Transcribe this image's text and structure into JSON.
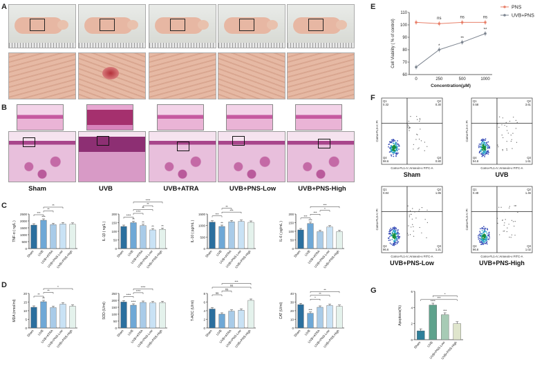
{
  "panel_letters": [
    "A",
    "B",
    "C",
    "D",
    "E",
    "F",
    "G"
  ],
  "groups_main": [
    "Sham",
    "UVB",
    "UVB+ATRA",
    "UVB+PNS-Low",
    "UVB+PNS-High"
  ],
  "flow_groups": [
    "Sham",
    "UVB",
    "UVB+PNS-Low",
    "UVB+PNS-High"
  ],
  "colors": {
    "sham": "#2b6f9e",
    "uvb": "#6fa8d6",
    "atra": "#a9cbe8",
    "low": "#c9e2f5",
    "high": "#e4f2ec",
    "pns": "#e8806a",
    "uvbpns": "#7d8590"
  },
  "chart_data": [
    {
      "id": "C1",
      "type": "bar",
      "ylabel": "TNF-α ( ng/L )",
      "categories": [
        "Sham",
        "UVB",
        "UVB+ATRA",
        "UVB+PNS-Low",
        "UVB+PNS-High"
      ],
      "values": [
        1700,
        2050,
        1730,
        1780,
        1760
      ],
      "ylim": [
        0,
        2500
      ],
      "ticks": [
        "0",
        "500",
        "1000",
        "1500",
        "2000",
        "2500"
      ],
      "stars": [
        "",
        "***",
        "",
        "",
        ""
      ],
      "brackets": [
        "***",
        "**",
        "**"
      ]
    },
    {
      "id": "C2",
      "type": "bar",
      "ylabel": "IL-1β ( ng/L )",
      "categories": [
        "Sham",
        "UVB",
        "UVB+ATRA",
        "UVB+PNS-Low",
        "UVB+PNS-High"
      ],
      "values": [
        128,
        150,
        133,
        108,
        111
      ],
      "ylim": [
        0,
        200
      ],
      "ticks": [
        "0",
        "50",
        "100",
        "150",
        "200"
      ],
      "stars": [
        "",
        "**",
        "**",
        "**",
        "**"
      ],
      "brackets": [
        "****",
        "****",
        "**",
        "**",
        "****"
      ]
    },
    {
      "id": "C3",
      "type": "bar",
      "ylabel": "IL-10 ( pg/mL )",
      "categories": [
        "Sham",
        "UVB",
        "UVB+ATRA",
        "UVB+PNS-Low",
        "UVB+PNS-High"
      ],
      "values": [
        1150,
        960,
        1160,
        1180,
        1140
      ],
      "ylim": [
        0,
        1500
      ],
      "ticks": [
        "0",
        "500",
        "1000",
        "1500"
      ],
      "stars": [
        "",
        "**",
        "",
        "",
        ""
      ],
      "brackets": [
        "***",
        "***",
        "**"
      ]
    },
    {
      "id": "C4",
      "type": "bar",
      "ylabel": "IL-6 ( pg/mL )",
      "categories": [
        "Sham",
        "UVB",
        "UVB+ATRA",
        "UVB+PNS-Low",
        "UVB+PNS-High"
      ],
      "values": [
        108,
        145,
        98,
        125,
        98
      ],
      "ylim": [
        0,
        200
      ],
      "ticks": [
        "0",
        "50",
        "100",
        "150",
        "200"
      ],
      "stars": [
        "",
        "***",
        "",
        "",
        ""
      ],
      "brackets": [
        "***",
        "***",
        "*",
        "***"
      ]
    },
    {
      "id": "D1",
      "type": "bar",
      "ylabel": "MDA (nmol/ml)",
      "categories": [
        "Sham",
        "UVB",
        "UVB+ATRA",
        "UVB+PNS-Low",
        "UVB+PNS-High"
      ],
      "values": [
        12,
        15.2,
        11.8,
        13.8,
        12.6
      ],
      "ylim": [
        0,
        20
      ],
      "ticks": [
        "0",
        "5",
        "10",
        "15",
        "20"
      ],
      "stars": [
        "",
        "**",
        "",
        "",
        ""
      ],
      "brackets": [
        "**",
        "**",
        "*"
      ]
    },
    {
      "id": "D2",
      "type": "bar",
      "ylabel": "SOD (U/ml)",
      "categories": [
        "Sham",
        "UVB",
        "UVB+ATRA",
        "UVB+PNS-Low",
        "UVB+PNS-High"
      ],
      "values": [
        188,
        165,
        185,
        182,
        183
      ],
      "ylim": [
        0,
        250
      ],
      "ticks": [
        "0",
        "50",
        "100",
        "150",
        "200",
        "250"
      ],
      "stars": [
        "",
        "****",
        "",
        "",
        ""
      ],
      "brackets": [
        "****",
        "****",
        "****"
      ]
    },
    {
      "id": "D3",
      "type": "bar",
      "ylabel": "T-AOC (U/ml)",
      "categories": [
        "Sham",
        "UVB",
        "UVB+ATRA",
        "UVB+PNS-Low",
        "UVB+PNS-High"
      ],
      "values": [
        4.4,
        3.2,
        3.9,
        4.1,
        6.4
      ],
      "ylim": [
        0,
        8
      ],
      "ticks": [
        "0",
        "2",
        "4",
        "6",
        "8"
      ],
      "stars": [
        "",
        "",
        "",
        "",
        ""
      ],
      "brackets": [
        "ns",
        "ns",
        "ns",
        "***"
      ]
    },
    {
      "id": "D4",
      "type": "bar",
      "ylabel": "CAT (U/ml)",
      "categories": [
        "Sham",
        "UVB",
        "UVB+ATRA",
        "UVB+PNS-Low",
        "UVB+PNS-High"
      ],
      "values": [
        27,
        17,
        24,
        26,
        25
      ],
      "ylim": [
        0,
        40
      ],
      "ticks": [
        "0",
        "10",
        "20",
        "30",
        "40"
      ],
      "stars": [
        "",
        "***",
        "",
        "",
        ""
      ],
      "brackets": [
        "*",
        "**",
        "**"
      ]
    },
    {
      "id": "E",
      "type": "line",
      "ylabel": "Cell Viability ( % of control)",
      "xlabel": "Concentration(μM)",
      "x": [
        "0",
        "250",
        "500",
        "1000"
      ],
      "ylim": [
        60,
        110
      ],
      "yticks": [
        "60",
        "70",
        "80",
        "90",
        "100",
        "110"
      ],
      "series": [
        {
          "name": "PNS",
          "values": [
            102,
            101,
            102,
            102
          ]
        },
        {
          "name": "UVB+PNS",
          "values": [
            66,
            80,
            86,
            93
          ]
        }
      ],
      "annotations": [
        "ns",
        "ns",
        "ns"
      ],
      "stars": [
        "*",
        "**",
        "**"
      ]
    },
    {
      "id": "G",
      "type": "bar",
      "ylabel": "Apoptosis(%)",
      "categories": [
        "Sham",
        "UVB",
        "UVB+PNS-Low",
        "UVB+PNS-High"
      ],
      "values": [
        1.1,
        4.3,
        3.1,
        2.0
      ],
      "ylim": [
        0,
        6
      ],
      "ticks": [
        "0",
        "2",
        "4",
        "6"
      ],
      "stars": [
        "",
        "****",
        "***",
        ""
      ],
      "brackets": [
        "***",
        "*"
      ]
    }
  ],
  "flow": {
    "xaxis": "Como-FL1-A::Annexin-v FITC-A",
    "yaxis": "Como-FL3-A::PI",
    "quadrants": [
      {
        "q1": "0.32",
        "q2": "0.30",
        "q3": "0.80",
        "q4": "98.6"
      },
      {
        "q1": "0.58",
        "q2": "3.61",
        "q3": "1.61",
        "q4": "94.8"
      },
      {
        "q1": "0.84",
        "q2": "1.85",
        "q3": "1.21",
        "q4": "96.6"
      },
      {
        "q1": "0.48",
        "q2": "1.46",
        "q3": "1.02",
        "q4": "96.8"
      }
    ]
  }
}
